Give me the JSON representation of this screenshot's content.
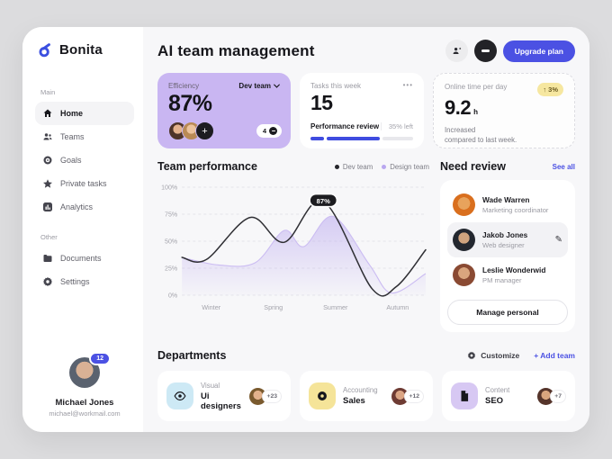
{
  "sidebar": {
    "logo": "Bonita",
    "sections": [
      {
        "label": "Main",
        "items": [
          {
            "label": "Home",
            "icon": "home-icon",
            "active": true
          },
          {
            "label": "Teams",
            "icon": "users-icon"
          },
          {
            "label": "Goals",
            "icon": "target-icon"
          },
          {
            "label": "Private tasks",
            "icon": "star-icon"
          },
          {
            "label": "Analytics",
            "icon": "chart-icon"
          }
        ]
      },
      {
        "label": "Other",
        "items": [
          {
            "label": "Documents",
            "icon": "folder-icon"
          },
          {
            "label": "Settings",
            "icon": "gear-icon"
          }
        ]
      }
    ],
    "user": {
      "name": "Michael Jones",
      "email": "michael@workmail.com",
      "badge": "12"
    }
  },
  "header": {
    "title": "AI team management",
    "upgrade_label": "Upgrade plan"
  },
  "stats": {
    "efficiency": {
      "label": "Efficiency",
      "value": "87%",
      "team_selector": "Dev team",
      "extra_count": "4",
      "add_label": "+",
      "card_color": "#c9b6f2"
    },
    "tasks": {
      "label": "Tasks this week",
      "value": "15",
      "menu_icon": "•••",
      "task_name": "Performance review",
      "remaining": "35% left",
      "progress_segments": [
        13,
        52
      ],
      "progress_color": "#3f4ce0"
    },
    "online": {
      "label": "Online time per day",
      "value": "9.2",
      "unit": "h",
      "badge": "↑ 3%",
      "note_line1": "Increased",
      "note_line2": "compared to last week."
    }
  },
  "performance": {
    "title": "Team performance",
    "legend": [
      {
        "label": "Dev team",
        "color": "#26262b"
      },
      {
        "label": "Design team",
        "color": "#b9a7ef"
      }
    ]
  },
  "chart_data": {
    "type": "line",
    "title": "Team performance",
    "x_labels": [
      "Winter",
      "Spring",
      "Summer",
      "Autumn"
    ],
    "y_ticks": [
      100,
      75,
      50,
      25,
      0
    ],
    "ylim": [
      0,
      100
    ],
    "grid": "dashed-horizontal",
    "legend_position": "top-right",
    "series": [
      {
        "name": "Design team",
        "style": "area",
        "line_color": "#cbbcf2",
        "fill_from": "rgba(185,167,239,0.55)",
        "fill_to": "rgba(185,167,239,0.04)",
        "points": [
          [
            0,
            35
          ],
          [
            0.15,
            28
          ],
          [
            0.3,
            30
          ],
          [
            0.42,
            60
          ],
          [
            0.5,
            45
          ],
          [
            0.62,
            73
          ],
          [
            0.77,
            28
          ],
          [
            0.86,
            2
          ],
          [
            1,
            20
          ]
        ]
      },
      {
        "name": "Dev team",
        "style": "line",
        "line_color": "#2f2f34",
        "points": [
          [
            0,
            35
          ],
          [
            0.1,
            33
          ],
          [
            0.28,
            72
          ],
          [
            0.42,
            49
          ],
          [
            0.58,
            87
          ],
          [
            0.78,
            6
          ],
          [
            0.88,
            8
          ],
          [
            1,
            42
          ]
        ]
      }
    ],
    "annotation": {
      "label": "87%",
      "series": "Dev team",
      "at": [
        0.58,
        87
      ]
    }
  },
  "review": {
    "title": "Need review",
    "see_all": "See all",
    "people": [
      {
        "name": "Wade Warren",
        "role": "Marketing coordinator",
        "selected": false
      },
      {
        "name": "Jakob Jones",
        "role": "Web designer",
        "selected": true
      },
      {
        "name": "Leslie Wonderwid",
        "role": "PM manager",
        "selected": false
      }
    ],
    "edit_icon": "✎",
    "button": "Manage personal"
  },
  "departments": {
    "title": "Departments",
    "customize": "Customize",
    "add_team": "+ Add team",
    "cards": [
      {
        "category": "Visual",
        "name": "Ui designers",
        "count": "+23",
        "icon": "eye-icon",
        "icon_bg": "#cde9f5"
      },
      {
        "category": "Accounting",
        "name": "Sales",
        "count": "+12",
        "icon": "coin-icon",
        "icon_bg": "#f5e499"
      },
      {
        "category": "Content",
        "name": "SEO",
        "count": "+7",
        "icon": "document-icon",
        "icon_bg": "#d7c8f3"
      }
    ]
  }
}
